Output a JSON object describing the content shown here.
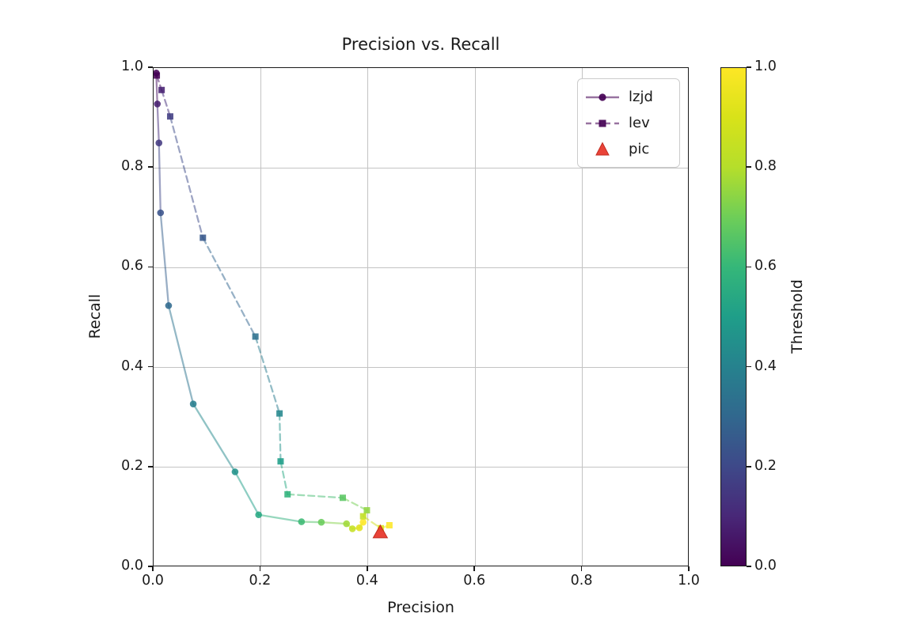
{
  "title": "Precision vs. Recall",
  "axes": {
    "xlabel": "Precision",
    "ylabel": "Recall",
    "xlim": [
      0.0,
      1.0
    ],
    "ylim": [
      0.0,
      1.0
    ],
    "xticks": [
      "0.0",
      "0.2",
      "0.4",
      "0.6",
      "0.8",
      "1.0"
    ],
    "yticks": [
      "0.0",
      "0.2",
      "0.4",
      "0.6",
      "0.8",
      "1.0"
    ],
    "grid": true
  },
  "legend": {
    "position": "upper-right",
    "items": [
      {
        "label": "lzjd",
        "marker": "circle",
        "line": "solid"
      },
      {
        "label": "lev",
        "marker": "square",
        "line": "dashed"
      },
      {
        "label": "pic",
        "marker": "triangle",
        "line": "none"
      }
    ]
  },
  "colorbar": {
    "label": "Threshold",
    "ticks": [
      "0.0",
      "0.2",
      "0.4",
      "0.6",
      "0.8",
      "1.0"
    ],
    "range": [
      0.0,
      1.0
    ],
    "cmap": "viridis"
  },
  "colors": {
    "viridis_stops": [
      "#440154",
      "#482878",
      "#3e4989",
      "#31688e",
      "#26828e",
      "#1f9e89",
      "#35b779",
      "#6ece58",
      "#b5de2b",
      "#d8e219",
      "#fde725"
    ],
    "pic_fill": "#e8392e",
    "pic_edge": "#bf2317",
    "grid": "#c3c3c3",
    "spine": "#1a1a1a"
  },
  "chart_data": {
    "type": "line",
    "title": "Precision vs. Recall",
    "xlabel": "Precision",
    "ylabel": "Recall",
    "xlim": [
      0.0,
      1.0
    ],
    "ylim": [
      0.0,
      1.0
    ],
    "grid": true,
    "legend_position": "upper-right",
    "color_by": "threshold",
    "series": [
      {
        "name": "lzjd",
        "marker": "circle",
        "line": "solid",
        "points_format": [
          "precision",
          "recall",
          "threshold"
        ],
        "points": [
          [
            0.005,
            0.99,
            0.0
          ],
          [
            0.007,
            0.928,
            0.077
          ],
          [
            0.01,
            0.85,
            0.154
          ],
          [
            0.013,
            0.71,
            0.231
          ],
          [
            0.028,
            0.524,
            0.308
          ],
          [
            0.074,
            0.327,
            0.385
          ],
          [
            0.152,
            0.191,
            0.462
          ],
          [
            0.196,
            0.105,
            0.538
          ],
          [
            0.276,
            0.091,
            0.615
          ],
          [
            0.313,
            0.09,
            0.692
          ],
          [
            0.36,
            0.087,
            0.769
          ],
          [
            0.371,
            0.077,
            0.846
          ],
          [
            0.384,
            0.079,
            0.923
          ],
          [
            0.391,
            0.09,
            1.0
          ]
        ]
      },
      {
        "name": "lev",
        "marker": "square",
        "line": "dashed",
        "points_format": [
          "precision",
          "recall",
          "threshold"
        ],
        "points": [
          [
            0.006,
            0.985,
            0.0
          ],
          [
            0.015,
            0.956,
            0.083
          ],
          [
            0.031,
            0.903,
            0.167
          ],
          [
            0.092,
            0.66,
            0.25
          ],
          [
            0.19,
            0.462,
            0.333
          ],
          [
            0.235,
            0.308,
            0.417
          ],
          [
            0.237,
            0.212,
            0.5
          ],
          [
            0.25,
            0.146,
            0.583
          ],
          [
            0.353,
            0.139,
            0.667
          ],
          [
            0.398,
            0.114,
            0.75
          ],
          [
            0.391,
            0.102,
            0.833
          ],
          [
            0.424,
            0.078,
            0.917
          ],
          [
            0.44,
            0.084,
            1.0
          ]
        ]
      },
      {
        "name": "pic",
        "marker": "triangle",
        "line": "none",
        "points_format": [
          "precision",
          "recall"
        ],
        "points": [
          [
            0.423,
            0.07
          ]
        ]
      }
    ]
  }
}
